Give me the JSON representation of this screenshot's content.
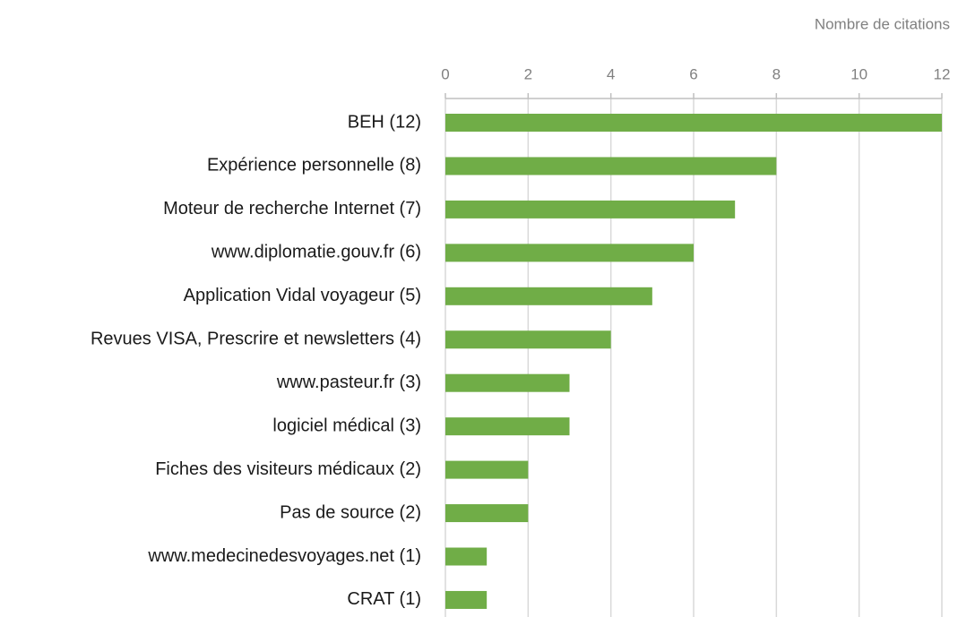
{
  "chart_data": {
    "type": "bar",
    "orientation": "horizontal",
    "x_label": "Nombre de citations",
    "categories": [
      "BEH (12)",
      "Expérience personnelle (8)",
      "Moteur de recherche Internet (7)",
      "www.diplomatie.gouv.fr (6)",
      "Application Vidal voyageur (5)",
      "Revues VISA, Prescrire et newsletters (4)",
      "www.pasteur.fr (3)",
      "logiciel médical (3)",
      "Fiches des visiteurs médicaux (2)",
      "Pas de source (2)",
      "www.medecinedesvoyages.net (1)",
      "CRAT (1)"
    ],
    "values": [
      12,
      8,
      7,
      6,
      5,
      4,
      3,
      3,
      2,
      2,
      1,
      1
    ],
    "color": "#70ad47",
    "xlim": [
      0,
      12
    ],
    "xticks": [
      0,
      2,
      4,
      6,
      8,
      10,
      12
    ],
    "grid": true
  }
}
